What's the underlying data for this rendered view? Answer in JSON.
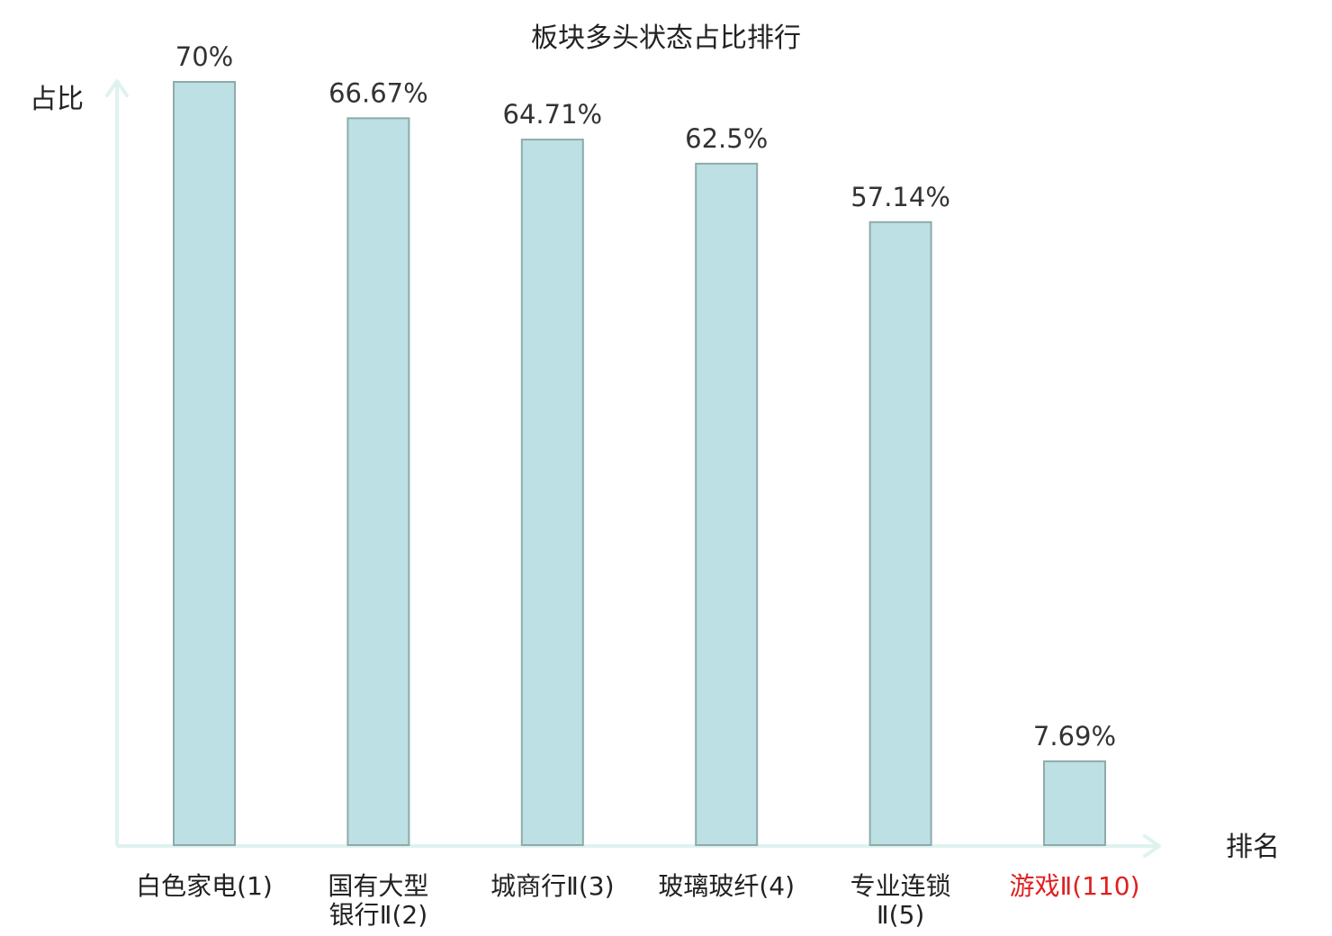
{
  "colors": {
    "bar_fill": "#bce0e3",
    "bar_stroke": "#8faaaa",
    "axis": "#dff2ef",
    "text": "#222222",
    "highlight": "#e02020"
  },
  "chart_data": {
    "type": "bar",
    "title": "板块多头状态占比排行",
    "xlabel": "排名",
    "ylabel": "占比",
    "ylim": [
      0,
      70
    ],
    "grid": false,
    "categories": [
      [
        "白色家电(1)"
      ],
      [
        "国有大型",
        "银行Ⅱ(2)"
      ],
      [
        "城商行Ⅱ(3)"
      ],
      [
        "玻璃玻纤(4)"
      ],
      [
        "专业连锁",
        "Ⅱ(5)"
      ],
      [
        "游戏Ⅱ(110)"
      ]
    ],
    "values": [
      70,
      66.67,
      64.71,
      62.5,
      57.14,
      7.69
    ],
    "value_labels": [
      "70%",
      "66.67%",
      "64.71%",
      "62.5%",
      "57.14%",
      "7.69%"
    ],
    "highlighted_index": 5
  }
}
